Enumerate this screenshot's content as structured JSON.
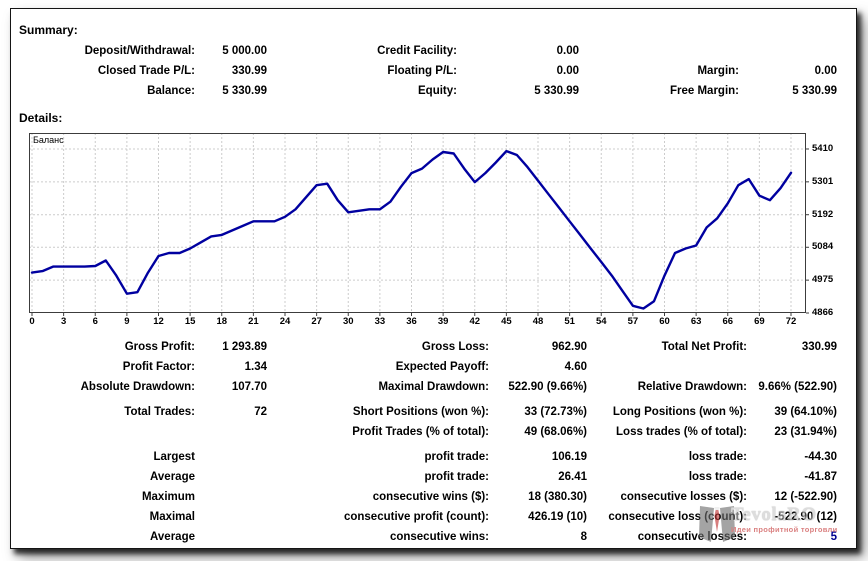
{
  "summary": {
    "title": "Summary:",
    "rows": [
      [
        "Deposit/Withdrawal:",
        "5 000.00",
        "Credit Facility:",
        "0.00",
        "",
        ""
      ],
      [
        "Closed Trade P/L:",
        "330.99",
        "Floating P/L:",
        "0.00",
        "Margin:",
        "0.00"
      ],
      [
        "Balance:",
        "5 330.99",
        "Equity:",
        "5 330.99",
        "Free Margin:",
        "5 330.99"
      ]
    ]
  },
  "details": {
    "title": "Details:",
    "rows": [
      [
        "Gross Profit:",
        "1 293.89",
        "Gross Loss:",
        "962.90",
        "Total Net Profit:",
        "330.99"
      ],
      [
        "Profit Factor:",
        "1.34",
        "Expected Payoff:",
        "4.60",
        "",
        ""
      ],
      [
        "Absolute Drawdown:",
        "107.70",
        "Maximal Drawdown:",
        "522.90 (9.66%)",
        "Relative Drawdown:",
        "9.66% (522.90)"
      ],
      [
        "Total Trades:",
        "72",
        "Short Positions (won %):",
        "33 (72.73%)",
        "Long Positions (won %):",
        "39 (64.10%)"
      ],
      [
        "",
        "",
        "Profit Trades (% of total):",
        "49 (68.06%)",
        "Loss trades (% of total):",
        "23 (31.94%)"
      ],
      [
        "Largest",
        "",
        "profit trade:",
        "106.19",
        "loss trade:",
        "-44.30"
      ],
      [
        "Average",
        "",
        "profit trade:",
        "26.41",
        "loss trade:",
        "-41.87"
      ],
      [
        "Maximum",
        "",
        "consecutive wins ($):",
        "18 (380.30)",
        "consecutive losses ($):",
        "12 (-522.90)"
      ],
      [
        "Maximal",
        "",
        "consecutive profit (count):",
        "426.19 (10)",
        "consecutive loss (count):",
        "-522.90 (12)"
      ],
      [
        "Average",
        "",
        "consecutive wins:",
        "8",
        "consecutive losses:",
        "5"
      ]
    ],
    "special_cell": {
      "row": 9,
      "col": 5,
      "color": "#000090"
    }
  },
  "chart_data": {
    "type": "line",
    "title": "Баланс",
    "series": [
      {
        "name": "Баланс",
        "values": [
          5000,
          5005,
          5020,
          5020,
          5020,
          5020,
          5022,
          5040,
          4990,
          4930,
          4935,
          5000,
          5055,
          5065,
          5065,
          5080,
          5100,
          5120,
          5125,
          5140,
          5155,
          5170,
          5170,
          5170,
          5185,
          5210,
          5250,
          5290,
          5295,
          5240,
          5200,
          5205,
          5210,
          5210,
          5235,
          5285,
          5330,
          5345,
          5375,
          5400,
          5395,
          5345,
          5300,
          5330,
          5365,
          5403,
          5390,
          5350,
          5305,
          5260,
          5215,
          5170,
          5125,
          5080,
          5035,
          4990,
          4940,
          4890,
          4881,
          4905,
          4990,
          5065,
          5080,
          5090,
          5150,
          5180,
          5230,
          5290,
          5310,
          5255,
          5240,
          5280,
          5331
        ]
      }
    ],
    "x_ticks": [
      0,
      3,
      6,
      9,
      12,
      15,
      18,
      21,
      24,
      27,
      30,
      33,
      36,
      39,
      42,
      45,
      48,
      51,
      54,
      57,
      60,
      63,
      66,
      69,
      72
    ],
    "y_ticks": [
      5410,
      5301,
      5192,
      5084,
      4975,
      4866
    ],
    "xlim": [
      0,
      72
    ],
    "ylim": [
      4866,
      5463
    ],
    "grid": "dashed",
    "legend_position": "top-left-inside",
    "line_color": "#0000a0",
    "grid_color": "#cccccc",
    "frame_color": "#3c3c3c"
  },
  "watermark": {
    "title": "TevolaRO",
    "subtitle": "Идеи профитной торговли",
    "title_color": "#c9c9c9",
    "subtitle_color": "#c43333",
    "tie_color": "#c03030",
    "suit_color": "#6e6e6e"
  }
}
